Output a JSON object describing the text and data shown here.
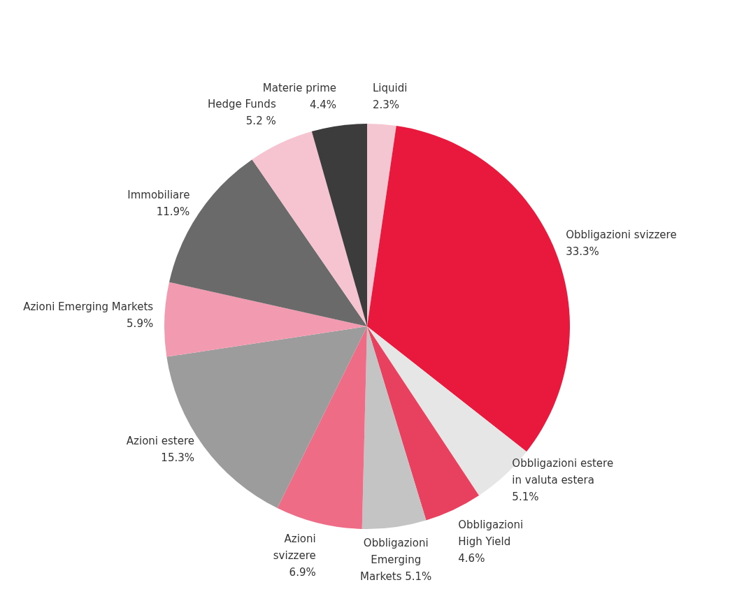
{
  "chart_data": {
    "type": "pie",
    "categories": [
      "Liquidi",
      "Obbligazioni svizzere",
      "Obbligazioni estere\nin valuta estera",
      "Obbligazioni\nHigh Yield",
      "Obbligazioni\nEmerging\nMarkets",
      "Azioni\nsvizzere",
      "Azioni estere",
      "Azioni Emerging Markets",
      "Immobiliare",
      "Hedge Funds",
      "Materie prime"
    ],
    "values": [
      2.3,
      33.3,
      5.1,
      4.6,
      5.1,
      6.9,
      15.3,
      5.9,
      11.9,
      5.2,
      4.4
    ],
    "value_labels": [
      "2.3%",
      "33.3%",
      "5.1%",
      "4.6%",
      "5.1%",
      "6.9%",
      "15.3%",
      "5.9%",
      "11.9%",
      "5.2 %",
      "4.4%"
    ],
    "colors": [
      "#f4c6d1",
      "#e8193c",
      "#e6e6e6",
      "#e8415f",
      "#c4c4c4",
      "#ee6c86",
      "#9c9c9c",
      "#f29ab0",
      "#6a6a6a",
      "#f5c4d0",
      "#3c3c3c"
    ],
    "legend": false
  }
}
